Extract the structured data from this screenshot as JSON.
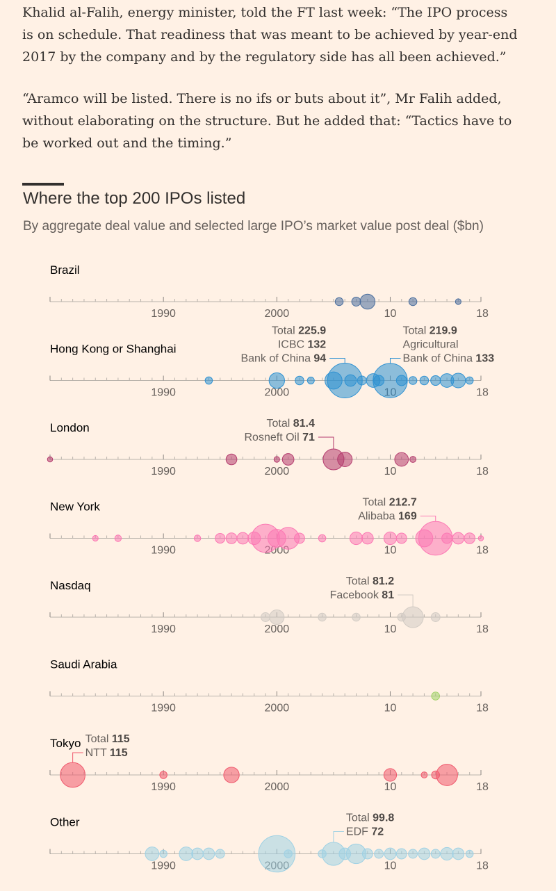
{
  "article": {
    "paragraphs": [
      "Khalid al-Falih, energy minister, told the FT last week: “The IPO process is on schedule. That readiness that was meant to be achieved by year-end 2017 by the company and by the regulatory side has all been achieved.”",
      "“Aramco will be listed. There is no ifs or buts about it”, Mr Falih added, without elaborating on the structure. But he added that: “Tactics have to be worked out and the timing.”"
    ]
  },
  "chart_data": {
    "type": "scatter",
    "title": "Where the top 200 IPOs listed",
    "subtitle": "By aggregate deal value and selected large IPO’s market value post deal ($bn)",
    "x_range": [
      1980,
      2018
    ],
    "tick_labels": [
      {
        "year": 1990,
        "label": "1990"
      },
      {
        "year": 2000,
        "label": "2000"
      },
      {
        "year": 2010,
        "label": "10"
      },
      {
        "year": 2018,
        "label": "18"
      }
    ],
    "series": [
      {
        "name": "Brazil",
        "color": "#4a6e9e",
        "points": [
          [
            2005.5,
            12
          ],
          [
            2007,
            15
          ],
          [
            2008,
            42
          ],
          [
            2012,
            12
          ],
          [
            2016,
            6
          ]
        ],
        "annotations": []
      },
      {
        "name": "Hong Kong or Shanghai",
        "color": "#2e91d2",
        "points": [
          [
            1994,
            10
          ],
          [
            2000,
            45
          ],
          [
            2002,
            14
          ],
          [
            2003,
            9
          ],
          [
            2005,
            55
          ],
          [
            2006,
            225.9
          ],
          [
            2006.5,
            25
          ],
          [
            2007.5,
            15
          ],
          [
            2008.5,
            35
          ],
          [
            2009,
            20
          ],
          [
            2010,
            219.9
          ],
          [
            2011,
            20
          ],
          [
            2012,
            12
          ],
          [
            2013,
            14
          ],
          [
            2014,
            18
          ],
          [
            2015,
            35
          ],
          [
            2016,
            40
          ],
          [
            2017,
            10
          ]
        ],
        "annotations": [
          {
            "year": 2006,
            "anchor": "end",
            "lines": [
              {
                "text": "Total ",
                "bold": "225.9"
              },
              {
                "text": "ICBC ",
                "bold": "132"
              },
              {
                "text": "Bank of China ",
                "bold": "94"
              }
            ]
          },
          {
            "year": 2010,
            "anchor": "start",
            "lines": [
              {
                "text": "Total ",
                "bold": "219.9"
              },
              {
                "text": "Agricultural",
                "bold": ""
              },
              {
                "text": "Bank of China ",
                "bold": "133"
              }
            ]
          }
        ]
      },
      {
        "name": "London",
        "color": "#b43c6e",
        "points": [
          [
            1980,
            5
          ],
          [
            1996,
            22
          ],
          [
            2000,
            6
          ],
          [
            2001,
            25
          ],
          [
            2005,
            81.4
          ],
          [
            2006,
            40
          ],
          [
            2011,
            35
          ],
          [
            2012,
            7
          ]
        ],
        "annotations": [
          {
            "year": 2005,
            "anchor": "end",
            "lines": [
              {
                "text": "Total ",
                "bold": "81.4"
              },
              {
                "text": "Rosneft Oil ",
                "bold": "71"
              }
            ]
          }
        ]
      },
      {
        "name": "New York",
        "color": "#fc78b4",
        "points": [
          [
            1984,
            6
          ],
          [
            1986,
            8
          ],
          [
            1993,
            8
          ],
          [
            1995,
            18
          ],
          [
            1996,
            22
          ],
          [
            1997,
            25
          ],
          [
            1998,
            30
          ],
          [
            1999,
            150
          ],
          [
            2000,
            60
          ],
          [
            2001,
            90
          ],
          [
            2002,
            20
          ],
          [
            2004,
            10
          ],
          [
            2007,
            30
          ],
          [
            2008,
            25
          ],
          [
            2010,
            30
          ],
          [
            2011,
            20
          ],
          [
            2013,
            55
          ],
          [
            2014,
            212.7
          ],
          [
            2015,
            20
          ],
          [
            2016,
            25
          ],
          [
            2017,
            22
          ],
          [
            2018,
            5
          ]
        ],
        "annotations": [
          {
            "year": 2014,
            "anchor": "end",
            "lines": [
              {
                "text": "Total ",
                "bold": "212.7"
              },
              {
                "text": "Alibaba ",
                "bold": "169"
              }
            ]
          }
        ]
      },
      {
        "name": "Nasdaq",
        "color": "#d2cbc4",
        "points": [
          [
            1999,
            15
          ],
          [
            2000,
            40
          ],
          [
            2004,
            12
          ],
          [
            2007,
            12
          ],
          [
            2011,
            12
          ],
          [
            2012,
            81.2
          ],
          [
            2014,
            15
          ]
        ],
        "annotations": [
          {
            "year": 2012,
            "anchor": "end",
            "lines": [
              {
                "text": "Total ",
                "bold": "81.2"
              },
              {
                "text": "Facebook ",
                "bold": "81"
              }
            ]
          }
        ]
      },
      {
        "name": "Saudi Arabia",
        "color": "#a0d168",
        "points": [
          [
            2014,
            12
          ]
        ],
        "annotations": []
      },
      {
        "name": "Tokyo",
        "color": "#f05a6e",
        "points": [
          [
            1982,
            115
          ],
          [
            1990,
            10
          ],
          [
            1996,
            45
          ],
          [
            2010,
            30
          ],
          [
            2013,
            7
          ],
          [
            2014,
            12
          ],
          [
            2015,
            85
          ]
        ],
        "annotations": [
          {
            "year": 1982,
            "anchor": "start",
            "lines": [
              {
                "text": "Total ",
                "bold": "115"
              },
              {
                "text": "NTT ",
                "bold": "115"
              }
            ]
          }
        ]
      },
      {
        "name": "Other",
        "color": "#9fd1e4",
        "points": [
          [
            1989,
            35
          ],
          [
            1990,
            10
          ],
          [
            1992,
            35
          ],
          [
            1993,
            25
          ],
          [
            1994,
            25
          ],
          [
            1995,
            15
          ],
          [
            2000,
            250
          ],
          [
            2001,
            12
          ],
          [
            2004,
            12
          ],
          [
            2005,
            99.8
          ],
          [
            2006,
            25
          ],
          [
            2007,
            72
          ],
          [
            2008,
            20
          ],
          [
            2009,
            15
          ],
          [
            2010,
            25
          ],
          [
            2011,
            20
          ],
          [
            2012,
            15
          ],
          [
            2013,
            25
          ],
          [
            2014,
            15
          ],
          [
            2015,
            30
          ],
          [
            2016,
            25
          ],
          [
            2017,
            10
          ]
        ],
        "annotations": [
          {
            "year": 2005,
            "anchor": "start",
            "lines": [
              {
                "text": "Total ",
                "bold": "99.8"
              },
              {
                "text": "EDF ",
                "bold": "72"
              }
            ]
          }
        ]
      }
    ]
  }
}
